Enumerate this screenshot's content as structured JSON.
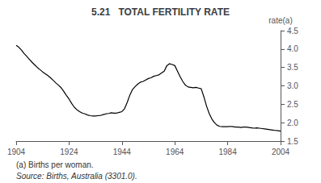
{
  "chart_data": {
    "type": "line",
    "title": "5.21   TOTAL FERTILITY RATE",
    "ylabel": "rate(a)",
    "annotations": [
      "(a) Births per woman.",
      "Source: Births, Australia (3301.0)."
    ],
    "color": "#000000",
    "grid": false,
    "xlim": [
      1904,
      2004
    ],
    "xticks": [
      1904,
      1924,
      1944,
      1964,
      1984,
      2004
    ],
    "ylim": [
      1.5,
      4.5
    ],
    "yticks": [
      1.5,
      {
        "value": 2,
        "label": "2.0"
      },
      2.5,
      {
        "value": 3,
        "label": "3.0"
      },
      3.5,
      {
        "value": 4,
        "label": "4.0"
      },
      4.5
    ],
    "x": [
      1904,
      1905,
      1906,
      1907,
      1908,
      1909,
      1910,
      1911,
      1912,
      1913,
      1914,
      1915,
      1916,
      1917,
      1918,
      1919,
      1920,
      1921,
      1922,
      1923,
      1924,
      1925,
      1926,
      1927,
      1928,
      1929,
      1930,
      1931,
      1932,
      1933,
      1934,
      1935,
      1936,
      1937,
      1938,
      1939,
      1940,
      1941,
      1942,
      1943,
      1944,
      1945,
      1946,
      1947,
      1948,
      1949,
      1950,
      1951,
      1952,
      1953,
      1954,
      1955,
      1956,
      1957,
      1958,
      1959,
      1960,
      1961,
      1962,
      1963,
      1964,
      1965,
      1966,
      1967,
      1968,
      1969,
      1970,
      1971,
      1972,
      1973,
      1974,
      1975,
      1976,
      1977,
      1978,
      1979,
      1980,
      1981,
      1982,
      1983,
      1984,
      1985,
      1986,
      1987,
      1988,
      1989,
      1990,
      1991,
      1992,
      1993,
      1994,
      1995,
      1996,
      1997,
      1998,
      1999,
      2000,
      2001,
      2002,
      2003,
      2004
    ],
    "values": [
      4.1,
      4.05,
      3.97,
      3.88,
      3.8,
      3.72,
      3.64,
      3.57,
      3.5,
      3.44,
      3.38,
      3.33,
      3.28,
      3.22,
      3.15,
      3.08,
      3.02,
      2.95,
      2.85,
      2.74,
      2.64,
      2.52,
      2.42,
      2.35,
      2.3,
      2.26,
      2.24,
      2.21,
      2.19,
      2.18,
      2.18,
      2.19,
      2.2,
      2.22,
      2.24,
      2.25,
      2.27,
      2.26,
      2.26,
      2.28,
      2.3,
      2.38,
      2.55,
      2.75,
      2.9,
      2.98,
      3.05,
      3.1,
      3.12,
      3.16,
      3.2,
      3.22,
      3.26,
      3.28,
      3.3,
      3.35,
      3.4,
      3.55,
      3.6,
      3.58,
      3.55,
      3.4,
      3.25,
      3.12,
      3.02,
      2.97,
      2.96,
      2.95,
      2.96,
      2.94,
      2.92,
      2.7,
      2.45,
      2.25,
      2.1,
      2.0,
      1.93,
      1.9,
      1.89,
      1.89,
      1.89,
      1.9,
      1.89,
      1.88,
      1.88,
      1.87,
      1.88,
      1.88,
      1.87,
      1.86,
      1.85,
      1.86,
      1.85,
      1.84,
      1.83,
      1.82,
      1.81,
      1.8,
      1.79,
      1.78,
      1.77
    ]
  }
}
